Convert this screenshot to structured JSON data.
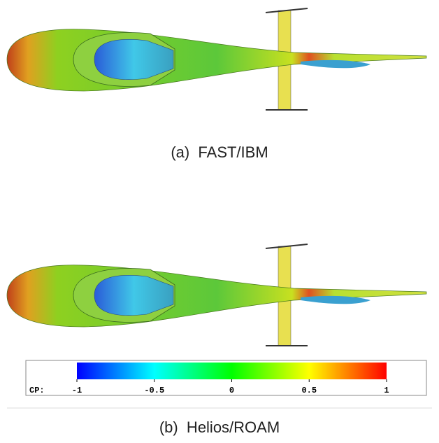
{
  "figures": [
    {
      "caption": "(a)  FAST/IBM"
    },
    {
      "caption": "(b)  Helios/ROAM"
    }
  ],
  "colorbar": {
    "label": "CP:",
    "lim": [
      -1,
      1
    ],
    "ticks": [
      -1,
      -0.5,
      0,
      0.5,
      1
    ]
  }
}
